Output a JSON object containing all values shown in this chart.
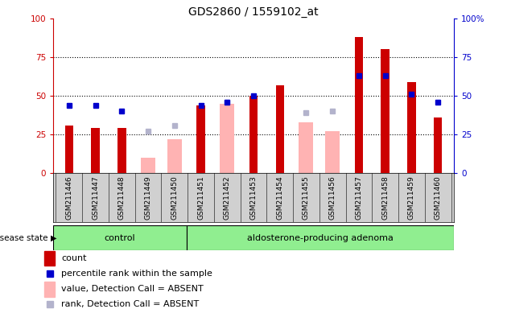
{
  "title": "GDS2860 / 1559102_at",
  "samples": [
    "GSM211446",
    "GSM211447",
    "GSM211448",
    "GSM211449",
    "GSM211450",
    "GSM211451",
    "GSM211452",
    "GSM211453",
    "GSM211454",
    "GSM211455",
    "GSM211456",
    "GSM211457",
    "GSM211458",
    "GSM211459",
    "GSM211460"
  ],
  "n_control": 5,
  "n_adenoma": 10,
  "count": [
    31,
    29,
    29,
    null,
    null,
    44,
    null,
    50,
    57,
    null,
    null,
    88,
    80,
    59,
    36
  ],
  "rank": [
    44,
    44,
    40,
    null,
    null,
    44,
    46,
    50,
    null,
    null,
    null,
    63,
    63,
    51,
    46
  ],
  "absent_value": [
    null,
    null,
    null,
    10,
    22,
    null,
    45,
    null,
    null,
    33,
    27,
    null,
    null,
    null,
    null
  ],
  "absent_rank": [
    null,
    null,
    null,
    27,
    31,
    null,
    46,
    null,
    null,
    39,
    40,
    null,
    null,
    null,
    null
  ],
  "ylim": [
    0,
    100
  ],
  "color_count": "#cc0000",
  "color_rank": "#0000cc",
  "color_absent_value": "#ffb3b3",
  "color_absent_rank": "#b3b3cc",
  "group_control_label": "control",
  "group_adenoma_label": "aldosterone-producing adenoma",
  "disease_state_label": "disease state",
  "legend_count": "count",
  "legend_rank": "percentile rank within the sample",
  "legend_absent_value": "value, Detection Call = ABSENT",
  "legend_absent_rank": "rank, Detection Call = ABSENT",
  "tick_bg_color": "#d0d0d0",
  "group_bg_color": "#90ee90",
  "fig_bg_color": "#ffffff"
}
